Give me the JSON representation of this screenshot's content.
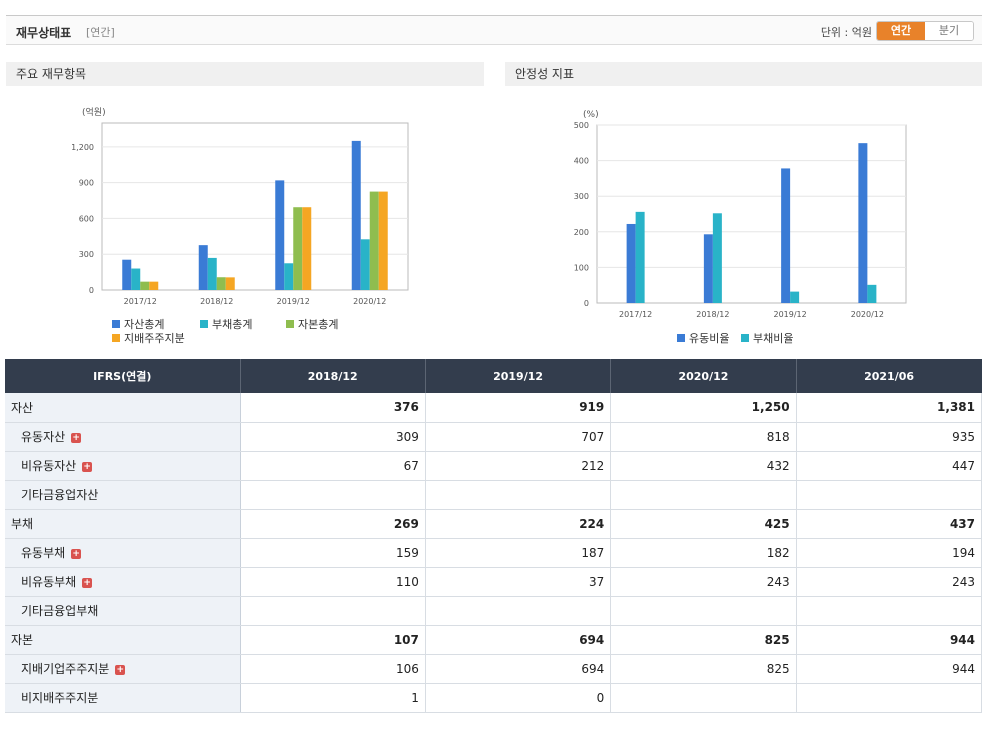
{
  "header": {
    "title": "재무상태표",
    "subtitle": "[연간]",
    "unit_label": "단위 : 억원",
    "tab_annual": "연간",
    "tab_quarter": "분기"
  },
  "panel_left": {
    "title": "주요 재무항목"
  },
  "panel_right": {
    "title": "안정성 지표"
  },
  "chart_data": [
    {
      "type": "bar",
      "yunit": "(억원)",
      "categories": [
        "2017/12",
        "2018/12",
        "2019/12",
        "2020/12"
      ],
      "ylim": [
        0,
        1400
      ],
      "yticks": [
        0,
        300,
        600,
        900,
        1200
      ],
      "ytick_labels": [
        "0",
        "300",
        "600",
        "900",
        "1,200"
      ],
      "series": [
        {
          "name": "자산총계",
          "color": "#3a7bd5",
          "values": [
            254,
            376,
            919,
            1250
          ]
        },
        {
          "name": "부채총계",
          "color": "#29b3c8",
          "values": [
            180,
            269,
            224,
            425
          ]
        },
        {
          "name": "자본총계",
          "color": "#8fbd4f",
          "values": [
            70,
            107,
            694,
            825
          ]
        },
        {
          "name": "지배주주지분",
          "color": "#f5a623",
          "values": [
            70,
            106,
            694,
            825
          ]
        }
      ],
      "grid": true,
      "legend": "bottom"
    },
    {
      "type": "bar",
      "yunit": "(%)",
      "categories": [
        "2017/12",
        "2018/12",
        "2019/12",
        "2020/12"
      ],
      "ylim": [
        0,
        500
      ],
      "yticks": [
        0,
        100,
        200,
        300,
        400,
        500
      ],
      "ytick_labels": [
        "0",
        "100",
        "200",
        "300",
        "400",
        "500"
      ],
      "series": [
        {
          "name": "유동비율",
          "color": "#3a7bd5",
          "values": [
            222,
            193,
            378,
            449
          ]
        },
        {
          "name": "부채비율",
          "color": "#29b3c8",
          "values": [
            256,
            252,
            32,
            51
          ]
        }
      ],
      "grid": true,
      "legend": "bottom"
    }
  ],
  "table": {
    "corner": "IFRS(연결)",
    "columns": [
      "2018/12",
      "2019/12",
      "2020/12",
      "2021/06"
    ],
    "rows": [
      {
        "label": "자산",
        "major": true,
        "plus": false,
        "values": [
          "376",
          "919",
          "1,250",
          "1,381"
        ]
      },
      {
        "label": "유동자산",
        "major": false,
        "plus": true,
        "values": [
          "309",
          "707",
          "818",
          "935"
        ]
      },
      {
        "label": "비유동자산",
        "major": false,
        "plus": true,
        "values": [
          "67",
          "212",
          "432",
          "447"
        ]
      },
      {
        "label": "기타금융업자산",
        "major": false,
        "plus": false,
        "values": [
          "",
          "",
          "",
          ""
        ]
      },
      {
        "label": "부채",
        "major": true,
        "plus": false,
        "values": [
          "269",
          "224",
          "425",
          "437"
        ]
      },
      {
        "label": "유동부채",
        "major": false,
        "plus": true,
        "values": [
          "159",
          "187",
          "182",
          "194"
        ]
      },
      {
        "label": "비유동부채",
        "major": false,
        "plus": true,
        "values": [
          "110",
          "37",
          "243",
          "243"
        ]
      },
      {
        "label": "기타금융업부채",
        "major": false,
        "plus": false,
        "values": [
          "",
          "",
          "",
          ""
        ]
      },
      {
        "label": "자본",
        "major": true,
        "plus": false,
        "values": [
          "107",
          "694",
          "825",
          "944"
        ]
      },
      {
        "label": "지배기업주주지분",
        "major": false,
        "plus": true,
        "values": [
          "106",
          "694",
          "825",
          "944"
        ]
      },
      {
        "label": "비지배주주지분",
        "major": false,
        "plus": false,
        "values": [
          "1",
          "0",
          "",
          ""
        ]
      }
    ]
  }
}
